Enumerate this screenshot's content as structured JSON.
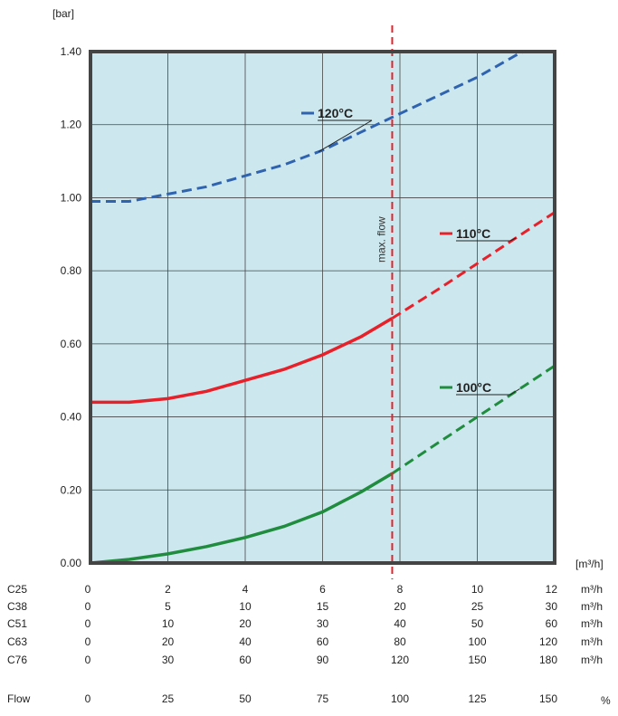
{
  "chart_data": {
    "type": "line",
    "ylabel": "[bar]",
    "xlabel": "[m³/h]",
    "ylim": [
      0,
      1.4
    ],
    "yticks": [
      "0.00",
      "0.20",
      "0.40",
      "0.60",
      "0.80",
      "1.00",
      "1.20",
      "1.40"
    ],
    "xlim": [
      0,
      12
    ],
    "grid": true,
    "background_color": "#cce8ee",
    "max_flow": {
      "x": 7.8,
      "label": "max. flow",
      "color": "#e8202a"
    },
    "series": [
      {
        "name": "120°C",
        "color": "#2f63b0",
        "x": [
          0,
          1,
          2,
          3,
          4,
          5,
          6,
          7,
          7.8,
          9,
          10,
          11,
          12
        ],
        "y": [
          0.99,
          0.99,
          1.01,
          1.03,
          1.06,
          1.09,
          1.13,
          1.18,
          1.22,
          1.28,
          1.33,
          1.39,
          1.44
        ]
      },
      {
        "name": "110°C",
        "color": "#e8202a",
        "x": [
          0,
          1,
          2,
          3,
          4,
          5,
          6,
          7,
          7.8,
          9,
          10,
          11,
          12
        ],
        "y": [
          0.44,
          0.44,
          0.45,
          0.47,
          0.5,
          0.53,
          0.57,
          0.62,
          0.67,
          0.75,
          0.82,
          0.89,
          0.96
        ]
      },
      {
        "name": "100°C",
        "color": "#1f8c3e",
        "x": [
          0,
          1,
          2,
          3,
          4,
          5,
          6,
          7,
          7.8,
          9,
          10,
          11,
          12
        ],
        "y": [
          0,
          0.01,
          0.025,
          0.045,
          0.07,
          0.1,
          0.14,
          0.195,
          0.245,
          0.33,
          0.4,
          0.47,
          0.54
        ]
      }
    ]
  },
  "table": {
    "unit_header": "[m³/h]",
    "rows": [
      {
        "label": "C25",
        "values": [
          "0",
          "2",
          "4",
          "6",
          "8",
          "10",
          "12"
        ],
        "unit": "m³/h"
      },
      {
        "label": "C38",
        "values": [
          "0",
          "5",
          "10",
          "15",
          "20",
          "25",
          "30"
        ],
        "unit": "m³/h"
      },
      {
        "label": "C51",
        "values": [
          "0",
          "10",
          "20",
          "30",
          "40",
          "50",
          "60"
        ],
        "unit": "m³/h"
      },
      {
        "label": "C63",
        "values": [
          "0",
          "20",
          "40",
          "60",
          "80",
          "100",
          "120"
        ],
        "unit": "m³/h"
      },
      {
        "label": "C76",
        "values": [
          "0",
          "30",
          "60",
          "90",
          "120",
          "150",
          "180"
        ],
        "unit": "m³/h"
      }
    ],
    "flow": {
      "label": "Flow",
      "values": [
        "0",
        "25",
        "50",
        "75",
        "100",
        "125",
        "150"
      ],
      "unit": "%"
    }
  }
}
